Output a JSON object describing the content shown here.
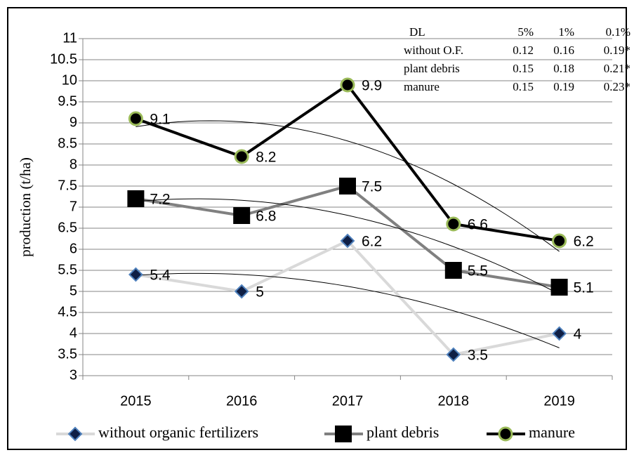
{
  "chart_data": {
    "type": "line",
    "y_label": "production (t/ha)",
    "categories": [
      "2015",
      "2016",
      "2017",
      "2018",
      "2019"
    ],
    "series": [
      {
        "name": "without organic fertilizers",
        "color": "#d9d9d9",
        "marker": "diamond",
        "marker_color": "#0f1f45",
        "marker_edge": "#4f81bd",
        "values": [
          5.4,
          5,
          6.2,
          3.5,
          4
        ]
      },
      {
        "name": "plant debris",
        "color": "#808080",
        "marker": "square",
        "marker_color": "#000000",
        "marker_edge": "#000000",
        "values": [
          7.2,
          6.8,
          7.5,
          5.5,
          5.1
        ]
      },
      {
        "name": "manure",
        "color": "#000000",
        "marker": "circle",
        "marker_color": "#000000",
        "marker_edge": "#9bbb59",
        "values": [
          9.1,
          8.2,
          9.9,
          6.6,
          6.2
        ]
      }
    ],
    "ylim": [
      3,
      11
    ],
    "yticks": [
      3,
      3.5,
      4,
      4.5,
      5,
      5.5,
      6,
      6.5,
      7,
      7.5,
      8,
      8.5,
      9,
      9.5,
      10,
      10.5,
      11
    ],
    "grid": true,
    "trendline": "polynomial",
    "legend": "bottom"
  },
  "table": {
    "header": [
      "DL",
      "5%",
      "1%",
      "0.1%"
    ],
    "rows": [
      [
        "without O.F.",
        "0.12",
        "0.16",
        "0.19*"
      ],
      [
        "plant debris",
        "0.15",
        "0.18",
        "0.21*"
      ],
      [
        "manure",
        "0.15",
        "0.19",
        "0.23*"
      ]
    ]
  }
}
